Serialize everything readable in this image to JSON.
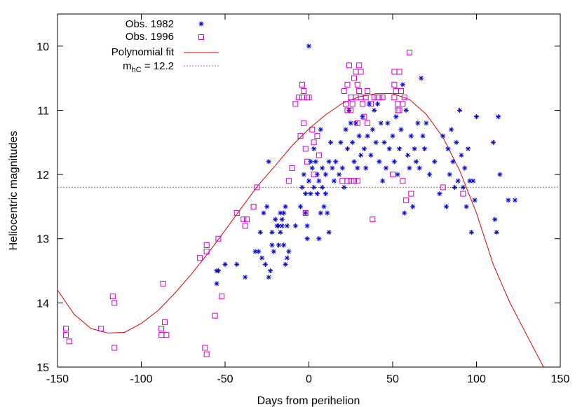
{
  "chart_data": {
    "type": "scatter",
    "title": "",
    "xlabel": "Days from perihelion",
    "ylabel": "Heliocentric magnitudes",
    "xlim": [
      -150,
      150
    ],
    "ylim": [
      9.5,
      15
    ],
    "y_inverted": true,
    "grid": false,
    "legend_position": "top-left",
    "x_ticks": [
      -150,
      -100,
      -50,
      0,
      50,
      100,
      150
    ],
    "x_tick_labels": [
      "-150",
      "-100",
      "-50",
      "0",
      "50",
      "100",
      "150"
    ],
    "y_ticks": [
      10,
      11,
      12,
      13,
      14,
      15
    ],
    "y_tick_labels": [
      "10",
      "11",
      "12",
      "13",
      "14",
      "15"
    ],
    "series": [
      {
        "name": "Obs. 1982",
        "marker": "asterisk",
        "color": "#0000cc",
        "points": [
          [
            0,
            10.0
          ],
          [
            -55,
            13.5
          ],
          [
            -54,
            13.5
          ],
          [
            -55,
            13.7
          ],
          [
            -50,
            13.4
          ],
          [
            -43,
            13.4
          ],
          [
            -38,
            13.6
          ],
          [
            -32,
            13.2
          ],
          [
            -30,
            13.2
          ],
          [
            -29,
            12.9
          ],
          [
            -28,
            13.3
          ],
          [
            -27,
            12.6
          ],
          [
            -26,
            13.4
          ],
          [
            -25,
            12.5
          ],
          [
            -24,
            13.6
          ],
          [
            -24,
            11.8
          ],
          [
            -23,
            13.5
          ],
          [
            -22,
            12.9
          ],
          [
            -22,
            13.1
          ],
          [
            -21,
            13.2
          ],
          [
            -20,
            12.7
          ],
          [
            -19,
            12.8
          ],
          [
            -18,
            12.8
          ],
          [
            -18,
            13.1
          ],
          [
            -17,
            12.6
          ],
          [
            -17,
            12.9
          ],
          [
            -16,
            12.7
          ],
          [
            -16,
            12.8
          ],
          [
            -15,
            12.6
          ],
          [
            -15,
            13.1
          ],
          [
            -14,
            13.4
          ],
          [
            -14,
            12.5
          ],
          [
            -13,
            12.8
          ],
          [
            -13,
            13.3
          ],
          [
            -12,
            13.2
          ],
          [
            -8,
            12.8
          ],
          [
            -5,
            12.5
          ],
          [
            -4,
            12.2
          ],
          [
            -3,
            12.0
          ],
          [
            -2,
            12.3
          ],
          [
            -2,
            12.6
          ],
          [
            -1,
            12.8
          ],
          [
            -1,
            13.0
          ],
          [
            0,
            12.1
          ],
          [
            1,
            11.8
          ],
          [
            1,
            12.3
          ],
          [
            2,
            11.9
          ],
          [
            3,
            11.6
          ],
          [
            3,
            12.2
          ],
          [
            4,
            11.8
          ],
          [
            5,
            12.0
          ],
          [
            5,
            12.3
          ],
          [
            6,
            12.1
          ],
          [
            6,
            13.0
          ],
          [
            7,
            11.3
          ],
          [
            7,
            12.6
          ],
          [
            8,
            12.2
          ],
          [
            8,
            11.9
          ],
          [
            9,
            12.5
          ],
          [
            10,
            12.0
          ],
          [
            10,
            12.3
          ],
          [
            11,
            12.6
          ],
          [
            12,
            11.8
          ],
          [
            12,
            12.9
          ],
          [
            13,
            11.5
          ],
          [
            14,
            11.9
          ],
          [
            15,
            12.1
          ],
          [
            16,
            11.8
          ],
          [
            18,
            12.0
          ],
          [
            19,
            11.5
          ],
          [
            20,
            11.9
          ],
          [
            21,
            12.2
          ],
          [
            22,
            11.3
          ],
          [
            23,
            11.6
          ],
          [
            24,
            11.0
          ],
          [
            25,
            11.2
          ],
          [
            26,
            11.5
          ],
          [
            27,
            11.8
          ],
          [
            28,
            11.2
          ],
          [
            29,
            11.9
          ],
          [
            30,
            11.4
          ],
          [
            31,
            11.7
          ],
          [
            32,
            11.1
          ],
          [
            33,
            11.6
          ],
          [
            34,
            11.9
          ],
          [
            35,
            11.4
          ],
          [
            36,
            10.9
          ],
          [
            37,
            11.7
          ],
          [
            38,
            11.3
          ],
          [
            39,
            11.0
          ],
          [
            40,
            11.5
          ],
          [
            41,
            10.9
          ],
          [
            42,
            11.8
          ],
          [
            43,
            11.2
          ],
          [
            44,
            12.1
          ],
          [
            45,
            11.5
          ],
          [
            46,
            11.9
          ],
          [
            47,
            11.2
          ],
          [
            48,
            11.6
          ],
          [
            50,
            11.4
          ],
          [
            51,
            11.8
          ],
          [
            52,
            11.1
          ],
          [
            53,
            12.0
          ],
          [
            54,
            11.6
          ],
          [
            55,
            11.3
          ],
          [
            56,
            10.6
          ],
          [
            57,
            12.6
          ],
          [
            58,
            11.0
          ],
          [
            59,
            11.7
          ],
          [
            60,
            11.9
          ],
          [
            61,
            11.4
          ],
          [
            62,
            12.5
          ],
          [
            63,
            11.6
          ],
          [
            64,
            11.8
          ],
          [
            65,
            11.2
          ],
          [
            66,
            11.9
          ],
          [
            67,
            10.5
          ],
          [
            68,
            11.4
          ],
          [
            69,
            11.6
          ],
          [
            70,
            11.2
          ],
          [
            72,
            12.0
          ],
          [
            75,
            11.8
          ],
          [
            78,
            12.3
          ],
          [
            80,
            11.4
          ],
          [
            82,
            12.5
          ],
          [
            83,
            11.6
          ],
          [
            84,
            12.0
          ],
          [
            85,
            11.3
          ],
          [
            86,
            11.8
          ],
          [
            87,
            12.2
          ],
          [
            88,
            11.5
          ],
          [
            89,
            12.1
          ],
          [
            90,
            11.0
          ],
          [
            91,
            11.7
          ],
          [
            92,
            12.2
          ],
          [
            93,
            11.9
          ],
          [
            94,
            12.5
          ],
          [
            95,
            11.6
          ],
          [
            96,
            12.1
          ],
          [
            97,
            12.9
          ],
          [
            98,
            12.1
          ],
          [
            99,
            12.4
          ],
          [
            100,
            11.1
          ],
          [
            110,
            11.5
          ],
          [
            111,
            12.7
          ],
          [
            112,
            12.9
          ],
          [
            113,
            11.1
          ],
          [
            114,
            12.0
          ],
          [
            119,
            12.4
          ],
          [
            123,
            12.4
          ]
        ]
      },
      {
        "name": "Obs. 1996",
        "marker": "square",
        "color": "#cc00cc",
        "points": [
          [
            -145,
            14.4
          ],
          [
            -145,
            14.5
          ],
          [
            -143,
            14.6
          ],
          [
            -124,
            14.4
          ],
          [
            -117,
            13.9
          ],
          [
            -116,
            14.0
          ],
          [
            -116,
            14.7
          ],
          [
            -88,
            14.4
          ],
          [
            -88,
            14.5
          ],
          [
            -87,
            13.7
          ],
          [
            -86,
            14.3
          ],
          [
            -85,
            14.5
          ],
          [
            -65,
            13.3
          ],
          [
            -62,
            14.7
          ],
          [
            -61,
            13.1
          ],
          [
            -61,
            13.2
          ],
          [
            -61,
            14.8
          ],
          [
            -56,
            14.2
          ],
          [
            -54,
            13.0
          ],
          [
            -52,
            13.9
          ],
          [
            -43,
            12.6
          ],
          [
            -39,
            12.7
          ],
          [
            -38,
            12.8
          ],
          [
            -37,
            12.7
          ],
          [
            -33,
            12.5
          ],
          [
            -31,
            12.2
          ],
          [
            -12,
            12.1
          ],
          [
            -10,
            11.9
          ],
          [
            -8,
            10.9
          ],
          [
            -6,
            10.8
          ],
          [
            -5,
            11.4
          ],
          [
            -4,
            10.6
          ],
          [
            -4,
            10.8
          ],
          [
            -3,
            10.7
          ],
          [
            -3,
            11.2
          ],
          [
            -2,
            11.6
          ],
          [
            -2,
            12.6
          ],
          [
            -1,
            10.8
          ],
          [
            -1,
            11.8
          ],
          [
            0,
            10.8
          ],
          [
            2,
            11.3
          ],
          [
            3,
            11.5
          ],
          [
            3,
            12.0
          ],
          [
            5,
            11.4
          ],
          [
            6,
            11.7
          ],
          [
            20,
            12.1
          ],
          [
            21,
            10.7
          ],
          [
            22,
            10.9
          ],
          [
            23,
            10.6
          ],
          [
            23,
            11.0
          ],
          [
            23,
            12.1
          ],
          [
            24,
            10.3
          ],
          [
            25,
            10.8
          ],
          [
            25,
            11.0
          ],
          [
            25,
            12.1
          ],
          [
            26,
            10.9
          ],
          [
            27,
            10.5
          ],
          [
            27,
            12.1
          ],
          [
            28,
            10.4
          ],
          [
            28,
            10.8
          ],
          [
            29,
            10.6
          ],
          [
            29,
            11.2
          ],
          [
            29,
            12.1
          ],
          [
            30,
            10.3
          ],
          [
            30,
            10.7
          ],
          [
            31,
            10.4
          ],
          [
            31,
            10.8
          ],
          [
            32,
            10.9
          ],
          [
            33,
            11.1
          ],
          [
            34,
            10.8
          ],
          [
            35,
            10.7
          ],
          [
            35,
            11.2
          ],
          [
            37,
            10.9
          ],
          [
            38,
            12.7
          ],
          [
            39,
            10.8
          ],
          [
            41,
            10.8
          ],
          [
            42,
            10.8
          ],
          [
            44,
            10.8
          ],
          [
            50,
            12.0
          ],
          [
            51,
            10.4
          ],
          [
            51,
            10.6
          ],
          [
            51,
            10.8
          ],
          [
            52,
            10.7
          ],
          [
            53,
            10.9
          ],
          [
            53,
            11.0
          ],
          [
            54,
            10.4
          ],
          [
            54,
            11.0
          ],
          [
            55,
            10.7
          ],
          [
            56,
            10.9
          ],
          [
            56,
            12.1
          ],
          [
            57,
            10.8
          ],
          [
            58,
            12.4
          ],
          [
            60,
            10.1
          ],
          [
            61,
            12.3
          ],
          [
            80,
            12.2
          ],
          [
            92,
            12.3
          ]
        ]
      }
    ],
    "fit": {
      "name": "Polynomial fit",
      "color": "#dd0000",
      "style": "solid",
      "points": [
        [
          -150,
          13.8
        ],
        [
          -140,
          14.18
        ],
        [
          -130,
          14.4
        ],
        [
          -120,
          14.47
        ],
        [
          -110,
          14.46
        ],
        [
          -100,
          14.32
        ],
        [
          -90,
          14.12
        ],
        [
          -80,
          13.85
        ],
        [
          -70,
          13.55
        ],
        [
          -60,
          13.22
        ],
        [
          -50,
          12.87
        ],
        [
          -40,
          12.51
        ],
        [
          -30,
          12.16
        ],
        [
          -20,
          11.86
        ],
        [
          -10,
          11.55
        ],
        [
          0,
          11.29
        ],
        [
          10,
          11.07
        ],
        [
          20,
          10.89
        ],
        [
          30,
          10.79
        ],
        [
          40,
          10.74
        ],
        [
          50,
          10.74
        ],
        [
          60,
          10.83
        ],
        [
          70,
          11.06
        ],
        [
          80,
          11.42
        ],
        [
          90,
          11.94
        ],
        [
          100,
          12.6
        ],
        [
          110,
          13.4
        ],
        [
          120,
          14.0
        ],
        [
          130,
          14.5
        ],
        [
          140,
          15.0
        ]
      ]
    },
    "reference_line": {
      "name": "m",
      "name_sub": "hC",
      "name_suffix": " = 12.2",
      "y": 12.2,
      "color": "#dd6666",
      "style": "dashed"
    }
  }
}
